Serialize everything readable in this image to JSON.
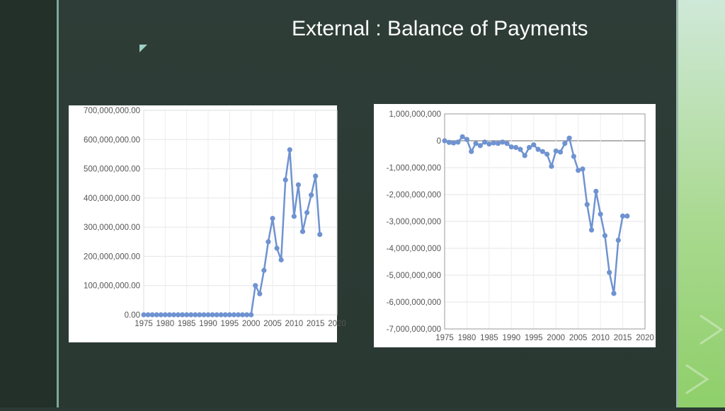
{
  "slide": {
    "title": "External : Balance of Payments"
  },
  "theme": {
    "series_color": "#6f93d1",
    "background": "#2b3a34",
    "accent_right": "#a9d98f"
  },
  "chart_data": [
    {
      "type": "line",
      "title": "",
      "xlabel": "",
      "ylabel": "",
      "xlim": [
        1975,
        2020
      ],
      "ylim": [
        0,
        700000000
      ],
      "grid": true,
      "x_ticks": [
        1975,
        1980,
        1985,
        1990,
        1995,
        2000,
        2005,
        2010,
        2015,
        2020
      ],
      "x_tick_labels": [
        "1975",
        "1980",
        "1985",
        "1990",
        "1995",
        "2000",
        "2005",
        "2010",
        "2015",
        "2020"
      ],
      "y_ticks": [
        0,
        100000000,
        200000000,
        300000000,
        400000000,
        500000000,
        600000000,
        700000000
      ],
      "y_tick_labels": [
        "0.00",
        "100,000,000.00",
        "200,000,000.00",
        "300,000,000.00",
        "400,000,000.00",
        "500,000,000.00",
        "600,000,000.00",
        "700,000,000.00"
      ],
      "series": [
        {
          "x": [
            1975,
            1976,
            1977,
            1978,
            1979,
            1980,
            1981,
            1982,
            1983,
            1984,
            1985,
            1986,
            1987,
            1988,
            1989,
            1990,
            1991,
            1992,
            1993,
            1994,
            1995,
            1996,
            1997,
            1998,
            1999,
            2000,
            2001,
            2002,
            2003,
            2004,
            2005,
            2006,
            2007,
            2008,
            2009,
            2010,
            2011,
            2012,
            2013,
            2014,
            2015,
            2016
          ],
          "y": [
            0,
            0,
            0,
            0,
            0,
            0,
            0,
            0,
            0,
            0,
            0,
            0,
            0,
            0,
            0,
            0,
            0,
            0,
            0,
            0,
            0,
            0,
            0,
            0,
            0,
            0,
            100000000,
            72000000,
            152000000,
            250000000,
            330000000,
            228000000,
            188000000,
            462000000,
            565000000,
            337000000,
            445000000,
            285000000,
            350000000,
            410000000,
            475000000,
            275000000
          ]
        }
      ]
    },
    {
      "type": "line",
      "title": "",
      "xlabel": "",
      "ylabel": "",
      "xlim": [
        1975,
        2020
      ],
      "ylim": [
        -7000000000,
        1000000000
      ],
      "grid": true,
      "x_ticks": [
        1975,
        1980,
        1985,
        1990,
        1995,
        2000,
        2005,
        2010,
        2015,
        2020
      ],
      "x_tick_labels": [
        "1975",
        "1980",
        "1985",
        "1990",
        "1995",
        "2000",
        "2005",
        "2010",
        "2015",
        "2020"
      ],
      "y_ticks": [
        1000000000,
        0,
        -1000000000,
        -2000000000,
        -3000000000,
        -4000000000,
        -5000000000,
        -6000000000,
        -7000000000
      ],
      "y_tick_labels": [
        "1,000,000,000",
        "0",
        "-1,000,000,000",
        "-2,000,000,000",
        "-3,000,000,000",
        "-4,000,000,000",
        "-5,000,000,000",
        "-6,000,000,000",
        "-7,000,000,000"
      ],
      "series": [
        {
          "x": [
            1975,
            1976,
            1977,
            1978,
            1979,
            1980,
            1981,
            1982,
            1983,
            1984,
            1985,
            1986,
            1987,
            1988,
            1989,
            1990,
            1991,
            1992,
            1993,
            1994,
            1995,
            1996,
            1997,
            1998,
            1999,
            2000,
            2001,
            2002,
            2003,
            2004,
            2005,
            2006,
            2007,
            2008,
            2009,
            2010,
            2011,
            2012,
            2013,
            2014,
            2015,
            2016
          ],
          "y": [
            0,
            -60000000,
            -80000000,
            -50000000,
            150000000,
            50000000,
            -400000000,
            -100000000,
            -180000000,
            -50000000,
            -120000000,
            -80000000,
            -100000000,
            -50000000,
            -100000000,
            -230000000,
            -250000000,
            -320000000,
            -550000000,
            -250000000,
            -150000000,
            -320000000,
            -400000000,
            -500000000,
            -950000000,
            -380000000,
            -420000000,
            -100000000,
            100000000,
            -580000000,
            -1100000000,
            -1050000000,
            -2370000000,
            -3320000000,
            -1880000000,
            -2730000000,
            -3530000000,
            -4900000000,
            -5680000000,
            -3700000000,
            -2800000000,
            -2800000000
          ]
        }
      ]
    }
  ]
}
